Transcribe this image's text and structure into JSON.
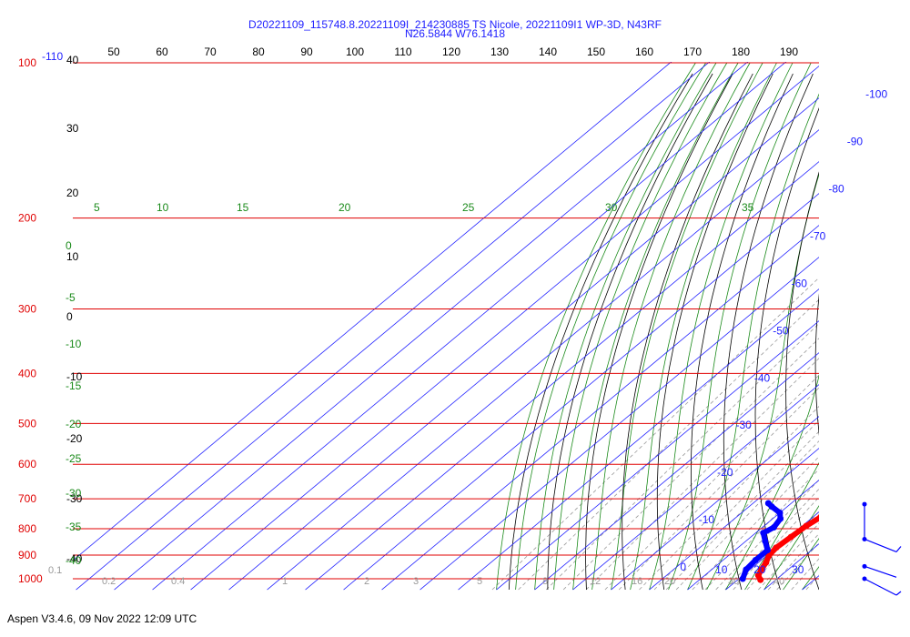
{
  "title": {
    "line1": "D20221109_115748.8.20221109I_214230885 TS Nicole, 20221109I1 WP-3D, N43RF",
    "line2": "N26.5844 W76.1418"
  },
  "footer": "Aspen V3.4.6, 09 Nov 2022  12:09 UTC",
  "colors": {
    "isobar": "#e00000",
    "isotherm": "#2020ff",
    "dry_adiabat": "#000000",
    "moist_adiabat": "#1a8a1a",
    "mixing_ratio": "#999999",
    "temperature": "#ff0000",
    "dewpoint": "#0000ff",
    "theta_e_axis": "#000000"
  },
  "chart_data": {
    "type": "skew-t",
    "pressure_levels": [
      "100",
      "200",
      "300",
      "400",
      "500",
      "600",
      "700",
      "800",
      "900",
      "1000"
    ],
    "extra_pressure_label": "-110",
    "theta_e_axis_top": [
      "50",
      "60",
      "70",
      "80",
      "90",
      "100",
      "110",
      "120",
      "130",
      "140",
      "150",
      "160",
      "170",
      "180",
      "190"
    ],
    "theta_left_labels": [
      "40",
      "30",
      "20",
      "10",
      "0",
      "-10",
      "-20",
      "-30",
      "-40"
    ],
    "isotherm_labels": [
      "-100",
      "-90",
      "-80",
      "-70",
      "-60",
      "-50",
      "-40",
      "-30",
      "-20",
      "-10",
      "0",
      "10",
      "20",
      "30"
    ],
    "isotherm_values": [
      -100,
      -90,
      -80,
      -70,
      -60,
      -50,
      -40,
      -30,
      -20,
      -10,
      0,
      10,
      20,
      30
    ],
    "moist_adiabat_labels": [
      "5",
      "10",
      "15",
      "20",
      "25",
      "30",
      "35"
    ],
    "moist_adiabat_left_labels": [
      "0",
      "-5",
      "-10",
      "-15",
      "-20",
      "-25",
      "-30",
      "-35",
      "-40"
    ],
    "mixing_ratio_labels": [
      "0.1",
      "0.2",
      "0.4",
      "1",
      "2",
      "3",
      "5",
      "8",
      "12",
      "16",
      "20",
      "30",
      "40"
    ],
    "temperature_profile": [
      {
        "p": 714,
        "t": 21.0
      },
      {
        "p": 730,
        "t": 22.0
      },
      {
        "p": 760,
        "t": 22.0
      },
      {
        "p": 790,
        "t": 21.0
      },
      {
        "p": 830,
        "t": 20.5
      },
      {
        "p": 870,
        "t": 20.0
      },
      {
        "p": 900,
        "t": 20.5
      },
      {
        "p": 930,
        "t": 22.0
      },
      {
        "p": 960,
        "t": 23.0
      },
      {
        "p": 985,
        "t": 24.0
      },
      {
        "p": 1005,
        "t": 26.0
      }
    ],
    "dewpoint_profile": [
      {
        "p": 714,
        "t": 4.0
      },
      {
        "p": 725,
        "t": 6.0
      },
      {
        "p": 745,
        "t": 10.0
      },
      {
        "p": 765,
        "t": 12.0
      },
      {
        "p": 795,
        "t": 13.0
      },
      {
        "p": 815,
        "t": 12.0
      },
      {
        "p": 845,
        "t": 15.0
      },
      {
        "p": 880,
        "t": 18.5
      },
      {
        "p": 920,
        "t": 18.5
      },
      {
        "p": 960,
        "t": 19.0
      },
      {
        "p": 1000,
        "t": 21.0
      }
    ],
    "wind_barbs": [
      {
        "p": 717
      },
      {
        "p": 838
      },
      {
        "p": 946
      },
      {
        "p": 1000
      }
    ]
  }
}
